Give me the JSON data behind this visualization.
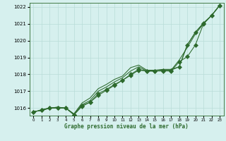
{
  "title": "Graphe pression niveau de la mer (hPa)",
  "bg_color": "#d6f0ee",
  "grid_color": "#b8ddd8",
  "line_color": "#2d6a2d",
  "ylim": [
    1015.55,
    1022.25
  ],
  "xlim": [
    -0.5,
    23.5
  ],
  "yticks": [
    1016,
    1017,
    1018,
    1019,
    1020,
    1021,
    1022
  ],
  "xticks": [
    0,
    1,
    2,
    3,
    4,
    5,
    6,
    7,
    8,
    9,
    10,
    11,
    12,
    13,
    14,
    15,
    16,
    17,
    18,
    19,
    20,
    21,
    22,
    23
  ],
  "plain_series": [
    [
      1015.8,
      1015.85,
      1016.0,
      1016.05,
      1016.0,
      1015.65,
      1016.3,
      1016.6,
      1017.15,
      1017.4,
      1017.7,
      1017.9,
      1018.4,
      1018.55,
      1018.25,
      1018.25,
      1018.3,
      1018.3,
      1018.45,
      1019.75,
      1020.5,
      1021.05,
      1021.5,
      1022.1
    ],
    [
      1015.8,
      1015.85,
      1016.0,
      1016.05,
      1016.0,
      1015.65,
      1016.2,
      1016.45,
      1017.0,
      1017.25,
      1017.55,
      1017.8,
      1018.2,
      1018.45,
      1018.2,
      1018.2,
      1018.25,
      1018.25,
      1018.85,
      1019.6,
      1020.4,
      1021.0,
      1021.5,
      1022.1
    ]
  ],
  "marker_series": [
    {
      "y": [
        1015.75,
        1015.9,
        1016.0,
        1016.0,
        1016.0,
        1015.6,
        1016.1,
        1016.35,
        1016.75,
        1017.05,
        1017.35,
        1017.65,
        1017.95,
        1018.25,
        1018.2,
        1018.2,
        1018.2,
        1018.2,
        1018.75,
        1019.05,
        1019.75,
        1021.0,
        1021.5,
        1022.1
      ],
      "marker": "D",
      "ms": 3.0
    },
    {
      "y": [
        1015.75,
        1015.9,
        1016.0,
        1016.0,
        1016.0,
        1015.6,
        1016.15,
        1016.35,
        1016.85,
        1017.1,
        1017.4,
        1017.65,
        1018.0,
        1018.3,
        1018.2,
        1018.2,
        1018.25,
        1018.25,
        1018.45,
        1019.75,
        1020.5,
        1021.05,
        1021.5,
        1022.1
      ],
      "marker": "D",
      "ms": 3.0
    }
  ]
}
